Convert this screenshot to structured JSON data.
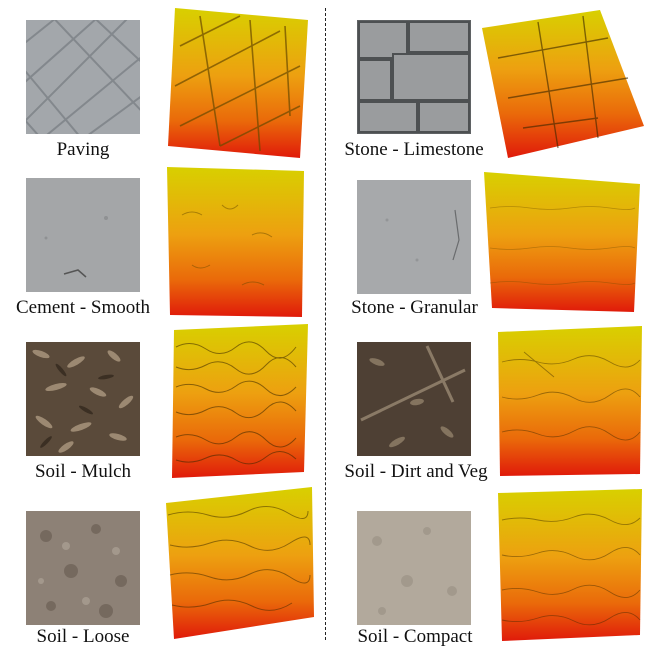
{
  "panels": [
    {
      "label": "Paving",
      "texture": "paving-stone",
      "colors": [
        "#9ea2a6",
        "#7f8489"
      ]
    },
    {
      "label": "Cement - Smooth",
      "texture": "cement",
      "colors": [
        "#a4a6a8",
        "#8f9193"
      ]
    },
    {
      "label": "Soil - Mulch",
      "texture": "wood-mulch",
      "colors": [
        "#7a6a55",
        "#3d3024"
      ]
    },
    {
      "label": "Soil - Loose",
      "texture": "loose-soil",
      "colors": [
        "#8d8176",
        "#6c5f55"
      ]
    },
    {
      "label": "Stone - Limestone",
      "texture": "limestone-wall",
      "colors": [
        "#8f9193",
        "#6d7072"
      ]
    },
    {
      "label": "Stone - Granular",
      "texture": "granular-stone",
      "colors": [
        "#a7a9ab",
        "#939597"
      ]
    },
    {
      "label": "Soil - Dirt and Veg",
      "texture": "dirt-vegetation",
      "colors": [
        "#6b5a47",
        "#3a2f25"
      ]
    },
    {
      "label": "Soil - Compact",
      "texture": "compact-soil",
      "colors": [
        "#b2a99c",
        "#988f83"
      ]
    }
  ],
  "height_map_colors": {
    "high": "#d8d000",
    "mid": "#e8800a",
    "low": "#e01a0a"
  }
}
